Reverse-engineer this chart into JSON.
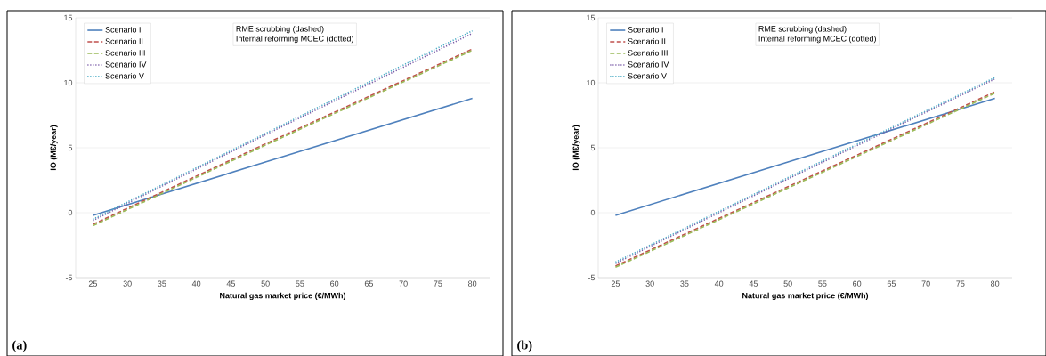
{
  "chart_data": [
    {
      "type": "line",
      "xlabel": "Natural gas market price (€/MWh)",
      "ylabel": "IO (M€/year)",
      "xlim": [
        22.5,
        82.5
      ],
      "ylim": [
        -5,
        15
      ],
      "xticks": [
        25,
        30,
        35,
        40,
        45,
        50,
        55,
        60,
        65,
        70,
        75,
        80
      ],
      "yticks": [
        -5,
        0,
        5,
        10,
        15
      ],
      "grid": "y",
      "legend": "top left",
      "marker": "none",
      "annotations": [
        "RME scrubbing (dashed)",
        "Internal reforming MCEC (dotted)",
        "(a)"
      ],
      "series": [
        {
          "name": "Scenario I",
          "color": "#4f81bd",
          "line_style": "solid",
          "x": [
            25,
            50,
            80
          ],
          "values": [
            -0.2,
            3.9,
            8.8
          ]
        },
        {
          "name": "Scenario II",
          "color": "#c0504d",
          "line_style": "dashed",
          "x": [
            25,
            50,
            80
          ],
          "values": [
            -0.9,
            5.3,
            12.6
          ]
        },
        {
          "name": "Scenario III",
          "color": "#9bbb59",
          "line_style": "dashed",
          "x": [
            25,
            50,
            80
          ],
          "values": [
            -1.0,
            5.2,
            12.5
          ]
        },
        {
          "name": "Scenario IV",
          "color": "#7a5ba8",
          "line_style": "dotted",
          "x": [
            25,
            50,
            80
          ],
          "values": [
            -0.6,
            6.0,
            13.8
          ]
        },
        {
          "name": "Scenario V",
          "color": "#4bacc6",
          "line_style": "dotted",
          "x": [
            25,
            50,
            80
          ],
          "values": [
            -0.5,
            6.1,
            14.0
          ]
        }
      ]
    },
    {
      "type": "line",
      "xlabel": "Natural gas market price (€/MWh)",
      "ylabel": "IO (M€/year)",
      "xlim": [
        22.5,
        82.5
      ],
      "ylim": [
        -5,
        15
      ],
      "xticks": [
        25,
        30,
        35,
        40,
        45,
        50,
        55,
        60,
        65,
        70,
        75,
        80
      ],
      "yticks": [
        -5,
        0,
        5,
        10,
        15
      ],
      "grid": "y",
      "legend": "top left",
      "marker": "none",
      "annotations": [
        "RME scrubbing (dashed)",
        "Internal reforming MCEC (dotted)",
        "(b)"
      ],
      "series": [
        {
          "name": "Scenario I",
          "color": "#4f81bd",
          "line_style": "solid",
          "x": [
            25,
            50,
            80
          ],
          "values": [
            -0.2,
            3.9,
            8.8
          ]
        },
        {
          "name": "Scenario II",
          "color": "#c0504d",
          "line_style": "dashed",
          "x": [
            25,
            50,
            80
          ],
          "values": [
            -4.1,
            2.0,
            9.3
          ]
        },
        {
          "name": "Scenario III",
          "color": "#9bbb59",
          "line_style": "dashed",
          "x": [
            25,
            50,
            80
          ],
          "values": [
            -4.2,
            1.9,
            9.2
          ]
        },
        {
          "name": "Scenario IV",
          "color": "#7a5ba8",
          "line_style": "dotted",
          "x": [
            25,
            50,
            80
          ],
          "values": [
            -3.9,
            2.6,
            10.3
          ]
        },
        {
          "name": "Scenario V",
          "color": "#4bacc6",
          "line_style": "dotted",
          "x": [
            25,
            50,
            80
          ],
          "values": [
            -3.8,
            2.7,
            10.4
          ]
        }
      ]
    }
  ]
}
